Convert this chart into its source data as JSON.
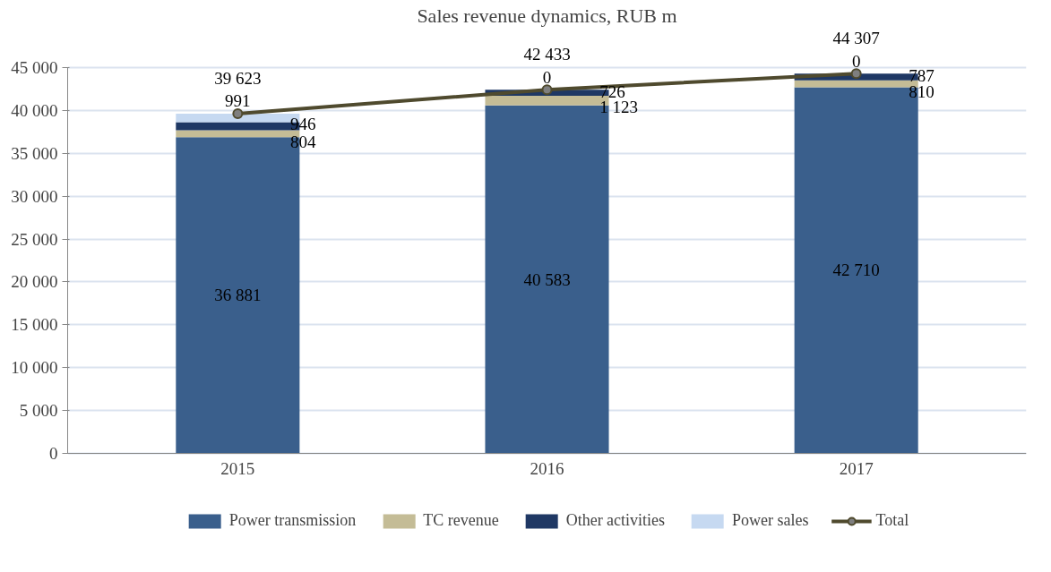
{
  "chart_data": {
    "type": "bar",
    "stacked": true,
    "title": "Sales revenue dynamics, RUB m",
    "categories": [
      "2015",
      "2016",
      "2017"
    ],
    "series": [
      {
        "name": "Power transmission",
        "color": "#3a5f8c",
        "values": [
          36881,
          40583,
          42710
        ],
        "value_labels": [
          "36 881",
          "40 583",
          "42 710"
        ]
      },
      {
        "name": "TC revenue",
        "color": "#c4bc96",
        "values": [
          804,
          1123,
          810
        ],
        "value_labels": [
          "804",
          "1 123",
          "810"
        ]
      },
      {
        "name": "Other activities",
        "color": "#1f3864",
        "values": [
          946,
          726,
          787
        ],
        "value_labels": [
          "946",
          "726",
          "787"
        ]
      },
      {
        "name": "Power sales",
        "color": "#c6d9f1",
        "values": [
          991,
          0,
          0
        ],
        "value_labels": [
          "991",
          "0",
          "0"
        ]
      },
      {
        "name": "Total",
        "type": "line",
        "color": "#4f4a2e",
        "marker": "circle",
        "line_style": "solid",
        "values": [
          39623,
          42433,
          44307
        ],
        "value_labels": [
          "39 623",
          "42 433",
          "44 307"
        ]
      }
    ],
    "ylim": [
      0,
      45000
    ],
    "yticks": [
      {
        "value": 0,
        "label": "0"
      },
      {
        "value": 5000,
        "label": "5 000"
      },
      {
        "value": 10000,
        "label": "10 000"
      },
      {
        "value": 15000,
        "label": "15 000"
      },
      {
        "value": 20000,
        "label": "20 000"
      },
      {
        "value": 25000,
        "label": "25 000"
      },
      {
        "value": 30000,
        "label": "30 000"
      },
      {
        "value": 35000,
        "label": "35 000"
      },
      {
        "value": 40000,
        "label": "40 000"
      },
      {
        "value": 45000,
        "label": "45 000"
      }
    ],
    "grid": "y",
    "legend": "bottom"
  }
}
